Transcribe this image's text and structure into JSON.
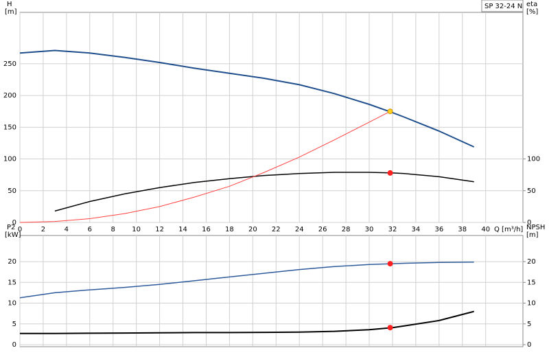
{
  "chart_data": [
    {
      "type": "line",
      "title": "SP 32-24 N",
      "y_label": "H",
      "y_unit": "[m]",
      "y2_label": "eta",
      "y2_unit": "[%]",
      "x_label": "Q [m³/h]",
      "xlim": [
        0,
        43.2
      ],
      "xticks": [
        0,
        2,
        4,
        6,
        8,
        10,
        12,
        14,
        16,
        18,
        20,
        22,
        24,
        26,
        28,
        30,
        32,
        34,
        36,
        38,
        40
      ],
      "ylim": [
        0,
        331
      ],
      "yticks": [
        0,
        50,
        100,
        150,
        200,
        250
      ],
      "y2lim": [
        0,
        331
      ],
      "y2ticks": [
        0,
        50,
        100
      ],
      "grid": true,
      "series": [
        {
          "name": "H",
          "color": "#1f4e8c",
          "width": 2,
          "x": [
            0,
            3,
            6,
            9,
            12,
            15,
            18,
            21,
            24,
            27,
            30,
            32,
            33,
            36,
            39
          ],
          "values": [
            267,
            271,
            267,
            260,
            252,
            243,
            235,
            227,
            217,
            203,
            186,
            173,
            166,
            144,
            119
          ]
        },
        {
          "name": "eta",
          "color": "#000000",
          "width": 1.5,
          "axis": "y2",
          "x": [
            3,
            6,
            9,
            12,
            15,
            18,
            21,
            24,
            27,
            30,
            32,
            33,
            36,
            39
          ],
          "values": [
            18,
            33,
            45,
            55,
            63,
            69,
            74,
            77,
            79,
            79,
            78,
            77,
            72,
            64
          ]
        },
        {
          "name": "system",
          "color": "#ff4040",
          "width": 1,
          "x": [
            0,
            3,
            6,
            9,
            12,
            15,
            18,
            21,
            24,
            27,
            30,
            31.8
          ],
          "values": [
            0,
            1.5,
            6,
            14,
            25,
            40,
            57,
            79,
            103,
            130,
            158,
            175
          ]
        }
      ],
      "points": [
        {
          "x": 31.8,
          "y": 175,
          "color": "#ffd21f"
        },
        {
          "x": 31.8,
          "y": 78,
          "color": "#ff2020",
          "axis": "y2"
        }
      ]
    },
    {
      "type": "line",
      "y_label": "P2",
      "y_unit": "[kW]",
      "y2_label": "NPSH",
      "y2_unit": "[m]",
      "xlim": [
        0,
        43.2
      ],
      "xticks": [
        0,
        2,
        4,
        6,
        8,
        10,
        12,
        14,
        16,
        18,
        20,
        22,
        24,
        26,
        28,
        30,
        32,
        34,
        36,
        38,
        40
      ],
      "ylim": [
        -0.5,
        26.3
      ],
      "yticks": [
        0,
        5,
        10,
        15,
        20
      ],
      "y2lim": [
        -0.5,
        26.3
      ],
      "y2ticks": [
        0,
        5,
        10,
        15,
        20
      ],
      "grid": true,
      "series": [
        {
          "name": "P2",
          "color": "#2d5a9a",
          "width": 1.5,
          "x": [
            0,
            3,
            6,
            9,
            12,
            15,
            18,
            21,
            24,
            27,
            30,
            32,
            33,
            36,
            39
          ],
          "values": [
            11.3,
            12.5,
            13.2,
            13.8,
            14.5,
            15.4,
            16.3,
            17.2,
            18.1,
            18.8,
            19.3,
            19.5,
            19.6,
            19.8,
            19.9
          ]
        },
        {
          "name": "NPSH",
          "color": "#000000",
          "width": 2,
          "axis": "y2",
          "x": [
            0,
            3,
            6,
            9,
            12,
            15,
            18,
            21,
            24,
            27,
            30,
            32,
            33,
            36,
            39
          ],
          "values": [
            2.7,
            2.7,
            2.75,
            2.8,
            2.85,
            2.9,
            2.9,
            2.95,
            3.0,
            3.2,
            3.6,
            4.1,
            4.5,
            5.8,
            8.0
          ]
        }
      ],
      "points": [
        {
          "x": 31.8,
          "y": 19.5,
          "color": "#ff2020"
        },
        {
          "x": 31.8,
          "y": 4.1,
          "color": "#ff2020",
          "axis": "y2"
        }
      ]
    }
  ]
}
